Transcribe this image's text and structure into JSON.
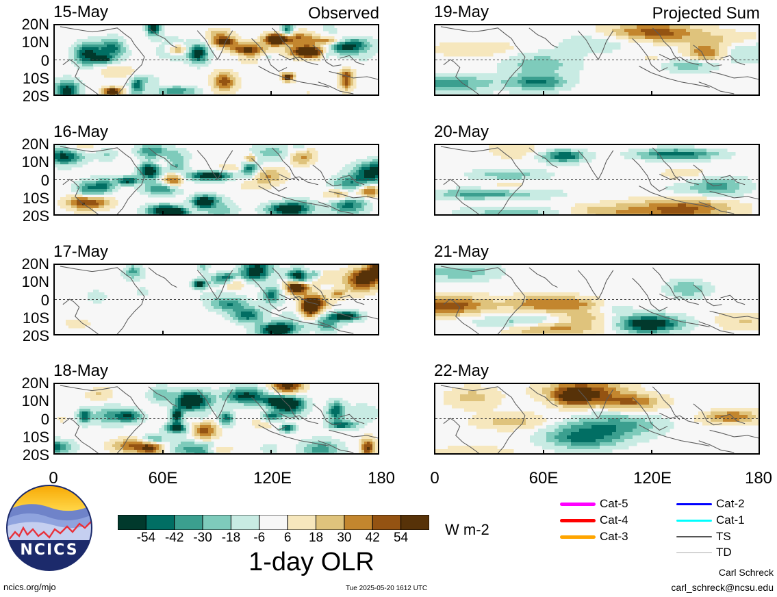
{
  "chart_data": [
    {
      "type": "heatmap",
      "title": "15-May",
      "tag": "Observed",
      "source": "observed",
      "y_ticks": [
        "20N",
        "10N",
        "0",
        "10S",
        "20S"
      ],
      "x_range": [
        0,
        180
      ],
      "y_range": [
        -20,
        20
      ],
      "seed": 11
    },
    {
      "type": "heatmap",
      "title": "16-May",
      "tag": "",
      "source": "observed",
      "y_ticks": [
        "20N",
        "10N",
        "0",
        "10S",
        "20S"
      ],
      "x_range": [
        0,
        180
      ],
      "y_range": [
        -20,
        20
      ],
      "seed": 23
    },
    {
      "type": "heatmap",
      "title": "17-May",
      "tag": "",
      "source": "observed",
      "y_ticks": [
        "20N",
        "10N",
        "0",
        "10S",
        "20S"
      ],
      "x_range": [
        0,
        180
      ],
      "y_range": [
        -20,
        20
      ],
      "seed": 37
    },
    {
      "type": "heatmap",
      "title": "18-May",
      "tag": "",
      "source": "observed",
      "y_ticks": [
        "20N",
        "10N",
        "0",
        "10S",
        "20S"
      ],
      "x_range": [
        0,
        180
      ],
      "y_range": [
        -20,
        20
      ],
      "seed": 49
    },
    {
      "type": "heatmap",
      "title": "19-May",
      "tag": "Projected Sum",
      "source": "projected",
      "x_range": [
        0,
        180
      ],
      "y_range": [
        -20,
        20
      ],
      "seed": 5
    },
    {
      "type": "heatmap",
      "title": "20-May",
      "tag": "",
      "source": "projected",
      "x_range": [
        0,
        180
      ],
      "y_range": [
        -20,
        20
      ],
      "seed": 6
    },
    {
      "type": "heatmap",
      "title": "21-May",
      "tag": "",
      "source": "projected",
      "x_range": [
        0,
        180
      ],
      "y_range": [
        -20,
        20
      ],
      "seed": 7
    },
    {
      "type": "heatmap",
      "title": "22-May",
      "tag": "",
      "source": "projected",
      "x_range": [
        0,
        180
      ],
      "y_range": [
        -20,
        20
      ],
      "seed": 8
    }
  ],
  "x_ticks": [
    "0",
    "60E",
    "120E",
    "180"
  ],
  "colorbar": {
    "title": "1-day OLR",
    "unit": "W m-2",
    "tick_labels": [
      "-54",
      "-42",
      "-30",
      "-18",
      "-6",
      "6",
      "18",
      "30",
      "42",
      "54"
    ],
    "colors": [
      "#01392c",
      "#016e63",
      "#3b9f8f",
      "#7ecbbb",
      "#c8ebe3",
      "#f7f7f7",
      "#f6e7bd",
      "#dfc37c",
      "#c3862e",
      "#945312",
      "#573208"
    ]
  },
  "storm_legend": {
    "items": [
      {
        "label": "Cat-5",
        "color": "#ff00ff"
      },
      {
        "label": "Cat-4",
        "color": "#ff0000"
      },
      {
        "label": "Cat-3",
        "color": "#ffa500"
      },
      {
        "label": "Cat-2",
        "color": "#0000ff"
      },
      {
        "label": "Cat-1",
        "color": "#00ffff"
      },
      {
        "label": "TS",
        "color": "#555555"
      },
      {
        "label": "TD",
        "color": "#aaaaaa"
      }
    ]
  },
  "logo": {
    "text": "NCICS"
  },
  "footer": {
    "website": "ncics.org/mjo",
    "timestamp": "Tue 2025-05-20 1612 UTC",
    "author": "Carl Schreck",
    "email": "carl_schreck@ncsu.edu"
  }
}
